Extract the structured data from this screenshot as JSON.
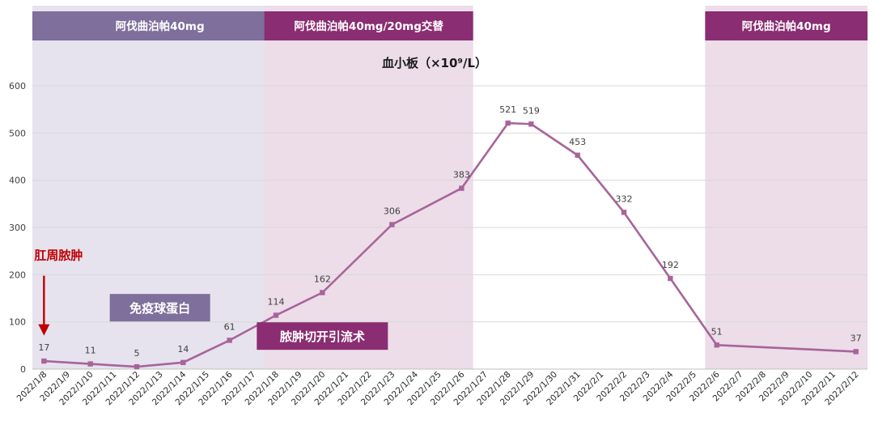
{
  "chart_data": {
    "type": "line",
    "title": "血小板（×10⁹/L）",
    "xlabel": "",
    "ylabel": "",
    "ylim": [
      0,
      600
    ],
    "yticks": [
      0,
      100,
      200,
      300,
      400,
      500,
      600
    ],
    "grid": true,
    "categories": [
      "2022/1/8",
      "2022/1/9",
      "2022/1/10",
      "2022/1/11",
      "2022/1/12",
      "2022/1/13",
      "2022/1/14",
      "2022/1/15",
      "2022/1/16",
      "2022/1/17",
      "2022/1/18",
      "2022/1/19",
      "2022/1/20",
      "2022/1/21",
      "2022/1/22",
      "2022/1/23",
      "2022/1/24",
      "2022/1/25",
      "2022/1/26",
      "2022/1/27",
      "2022/1/28",
      "2022/1/29",
      "2022/1/30",
      "2022/1/31",
      "2022/2/1",
      "2022/2/2",
      "2022/2/3",
      "2022/2/4",
      "2022/2/5",
      "2022/2/6",
      "2022/2/7",
      "2022/2/8",
      "2022/2/9",
      "2022/2/10",
      "2022/2/11",
      "2022/2/12"
    ],
    "series": [
      {
        "name": "",
        "color": "#a8649a",
        "points": [
          {
            "x": "2022/1/8",
            "y": 17
          },
          {
            "x": "2022/1/10",
            "y": 11
          },
          {
            "x": "2022/1/12",
            "y": 5
          },
          {
            "x": "2022/1/14",
            "y": 14
          },
          {
            "x": "2022/1/16",
            "y": 61
          },
          {
            "x": "2022/1/18",
            "y": 114
          },
          {
            "x": "2022/1/20",
            "y": 162
          },
          {
            "x": "2022/1/23",
            "y": 306
          },
          {
            "x": "2022/1/26",
            "y": 383
          },
          {
            "x": "2022/1/28",
            "y": 521
          },
          {
            "x": "2022/1/29",
            "y": 519
          },
          {
            "x": "2022/1/31",
            "y": 453
          },
          {
            "x": "2022/2/2",
            "y": 332
          },
          {
            "x": "2022/2/4",
            "y": 192
          },
          {
            "x": "2022/2/6",
            "y": 51
          },
          {
            "x": "2022/2/12",
            "y": 37
          }
        ]
      }
    ],
    "bands": [
      {
        "label": "阿伐曲泊帕40mg",
        "start": "2022/1/8",
        "end": "2022/1/18",
        "bg": "#e6e3ee",
        "header": "#7e6f9c"
      },
      {
        "label": "阿伐曲泊帕40mg/20mg交替",
        "start": "2022/1/18",
        "end": "2022/1/26",
        "bg": "#ecdde9",
        "header": "#8a2d72"
      },
      {
        "label": "阿伐曲泊帕40mg",
        "start": "2022/2/6",
        "end": "2022/2/12",
        "bg": "#ecdde9",
        "header": "#8a2d72"
      }
    ],
    "annotations": [
      {
        "text": "肛周脓肿",
        "color": "#c00000",
        "x": "2022/1/8",
        "y": 280,
        "arrow": true
      },
      {
        "text": "免疫球蛋白",
        "bg": "#7e6f9c",
        "x": "2022/1/13",
        "y": 130
      },
      {
        "text": "脓肿切开引流术",
        "bg": "#8a2d72",
        "x": "2022/1/20",
        "y": 70
      }
    ]
  }
}
